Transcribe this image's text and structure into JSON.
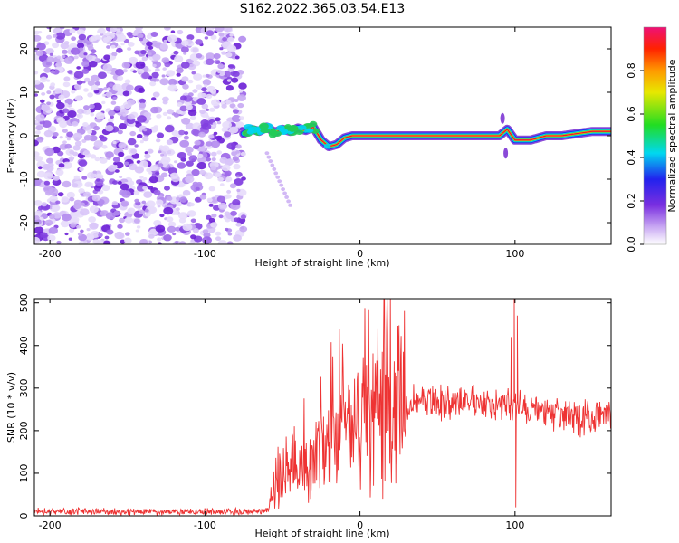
{
  "title": "S162.2022.365.03.54.E13",
  "chart_data": [
    {
      "type": "heatmap",
      "name": "spectrogram",
      "xlabel": "Height of straight line (km)",
      "ylabel": "Frequency (Hz)",
      "xlim": [
        -210,
        162
      ],
      "ylim": [
        -25,
        25
      ],
      "xticks": [
        -200,
        -100,
        0,
        100
      ],
      "yticks": [
        -20,
        -10,
        0,
        10,
        20
      ],
      "colorbar": {
        "label": "Normalized spectral amplitude",
        "range": [
          0,
          1
        ],
        "ticks": [
          "0.0",
          "0.2",
          "0.4",
          "0.6",
          "0.8"
        ],
        "tick_values": [
          0.0,
          0.2,
          0.4,
          0.6,
          0.8
        ]
      },
      "ridge": {
        "x": [
          -75,
          -70,
          -65,
          -60,
          -55,
          -50,
          -45,
          -40,
          -35,
          -30,
          -25,
          -20,
          -15,
          -10,
          -5,
          0,
          10,
          20,
          40,
          60,
          80,
          90,
          95,
          100,
          110,
          120,
          130,
          140,
          150,
          162
        ],
        "y": [
          0.5,
          1.5,
          1.0,
          2.0,
          0.8,
          1.5,
          1.0,
          1.8,
          1.2,
          2.0,
          -1.0,
          -2.5,
          -2.0,
          -0.5,
          0.0,
          0.0,
          0.0,
          0.0,
          0.0,
          0.0,
          0.0,
          0.0,
          1.5,
          -1.0,
          -1.0,
          0.0,
          0.0,
          0.5,
          1.0,
          1.0
        ]
      },
      "noise_region_xlim": [
        -210,
        -75
      ]
    },
    {
      "type": "line",
      "name": "snr",
      "xlabel": "Height of straight line (km)",
      "ylabel": "SNR (10 * v/v)",
      "xlim": [
        -210,
        162
      ],
      "ylim": [
        0,
        510
      ],
      "xticks": [
        -200,
        -100,
        0,
        100
      ],
      "yticks": [
        0,
        100,
        200,
        300,
        400,
        500
      ],
      "color": "#ee3333",
      "trend": {
        "x": [
          -210,
          -60,
          -55,
          -40,
          -30,
          -20,
          -10,
          0,
          10,
          20,
          30,
          40,
          60,
          80,
          95,
          100,
          105,
          120,
          140,
          162
        ],
        "y": [
          10,
          10,
          60,
          110,
          140,
          170,
          190,
          210,
          235,
          255,
          265,
          270,
          268,
          265,
          262,
          260,
          255,
          240,
          230,
          235
        ]
      },
      "spikes": [
        {
          "x": 99.5,
          "y": 510
        },
        {
          "x": 100.5,
          "y": 20
        },
        {
          "x": 97.5,
          "y": 420
        },
        {
          "x": 101.5,
          "y": 470
        }
      ]
    }
  ]
}
